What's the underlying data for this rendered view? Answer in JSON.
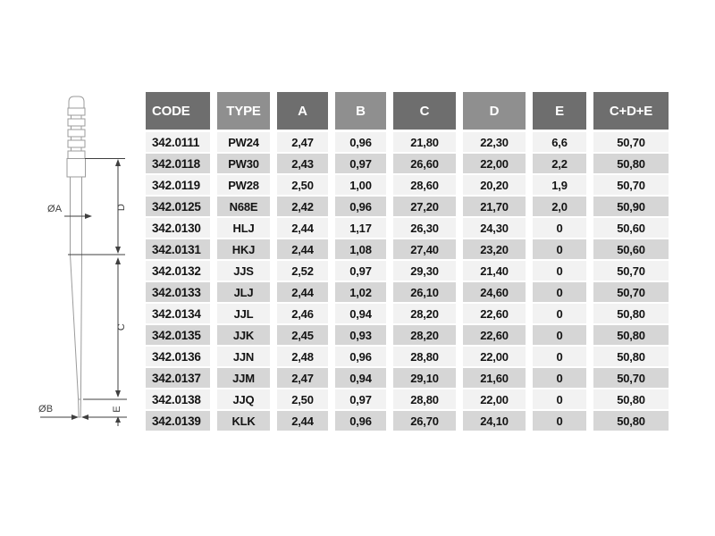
{
  "colors": {
    "header_dark": "#6e6e6e",
    "header_light": "#8f8f8f",
    "header_text": "#ffffff",
    "row_light": "#f2f2f2",
    "row_dark": "#d6d6d6",
    "text": "#141414",
    "line": "#9b9b9b",
    "dim": "#3f3f3f"
  },
  "diagram": {
    "labels": {
      "dia_a": "ØA",
      "dia_b": "ØB",
      "dim_c": "C",
      "dim_d": "D",
      "dim_e": "E"
    }
  },
  "table": {
    "headers": [
      {
        "label": "CODE",
        "shade": "dark"
      },
      {
        "label": "TYPE",
        "shade": "light"
      },
      {
        "label": "A",
        "shade": "dark"
      },
      {
        "label": "B",
        "shade": "light"
      },
      {
        "label": "C",
        "shade": "dark"
      },
      {
        "label": "D",
        "shade": "light"
      },
      {
        "label": "E",
        "shade": "dark"
      },
      {
        "label": "C+D+E",
        "shade": "dark"
      }
    ],
    "rows": [
      [
        "342.0111",
        "PW24",
        "2,47",
        "0,96",
        "21,80",
        "22,30",
        "6,6",
        "50,70"
      ],
      [
        "342.0118",
        "PW30",
        "2,43",
        "0,97",
        "26,60",
        "22,00",
        "2,2",
        "50,80"
      ],
      [
        "342.0119",
        "PW28",
        "2,50",
        "1,00",
        "28,60",
        "20,20",
        "1,9",
        "50,70"
      ],
      [
        "342.0125",
        "N68E",
        "2,42",
        "0,96",
        "27,20",
        "21,70",
        "2,0",
        "50,90"
      ],
      [
        "342.0130",
        "HLJ",
        "2,44",
        "1,17",
        "26,30",
        "24,30",
        "0",
        "50,60"
      ],
      [
        "342.0131",
        "HKJ",
        "2,44",
        "1,08",
        "27,40",
        "23,20",
        "0",
        "50,60"
      ],
      [
        "342.0132",
        "JJS",
        "2,52",
        "0,97",
        "29,30",
        "21,40",
        "0",
        "50,70"
      ],
      [
        "342.0133",
        "JLJ",
        "2,44",
        "1,02",
        "26,10",
        "24,60",
        "0",
        "50,70"
      ],
      [
        "342.0134",
        "JJL",
        "2,46",
        "0,94",
        "28,20",
        "22,60",
        "0",
        "50,80"
      ],
      [
        "342.0135",
        "JJK",
        "2,45",
        "0,93",
        "28,20",
        "22,60",
        "0",
        "50,80"
      ],
      [
        "342.0136",
        "JJN",
        "2,48",
        "0,96",
        "28,80",
        "22,00",
        "0",
        "50,80"
      ],
      [
        "342.0137",
        "JJM",
        "2,47",
        "0,94",
        "29,10",
        "21,60",
        "0",
        "50,70"
      ],
      [
        "342.0138",
        "JJQ",
        "2,50",
        "0,97",
        "28,80",
        "22,00",
        "0",
        "50,80"
      ],
      [
        "342.0139",
        "KLK",
        "2,44",
        "0,96",
        "26,70",
        "24,10",
        "0",
        "50,80"
      ]
    ]
  }
}
